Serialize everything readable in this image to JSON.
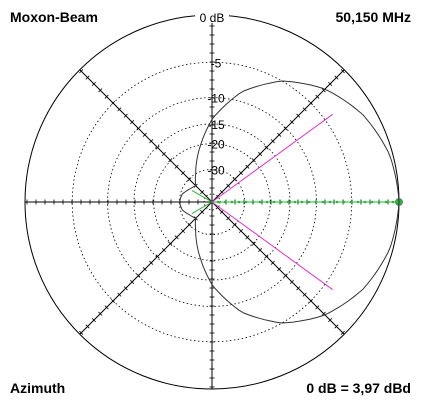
{
  "header": {
    "title": "Moxon-Beam",
    "frequency": "50,150 MHz"
  },
  "footer": {
    "view": "Azimuth",
    "reference": "0 dB = 3,97 dBd"
  },
  "chart_data": {
    "type": "polar",
    "radial_ticks": [
      {
        "db": 0,
        "label": "0 dB"
      },
      {
        "db": -5,
        "label": "-5"
      },
      {
        "db": -10,
        "label": "-10"
      },
      {
        "db": -15,
        "label": "-15"
      },
      {
        "db": -20,
        "label": "-20"
      },
      {
        "db": -30,
        "label": "-30"
      }
    ],
    "spokes_deg": [
      0,
      45,
      90,
      135,
      180,
      225,
      270,
      315
    ],
    "grid": "dotted concentric circles",
    "max_gain_direction_deg": 0,
    "half_power_lines_deg": [
      -36,
      36
    ],
    "pattern": {
      "azimuth_deg": [
        0,
        15,
        30,
        45,
        60,
        75,
        90,
        105,
        120,
        135,
        150,
        165,
        180,
        195,
        210,
        225,
        240,
        255,
        270,
        285,
        300,
        315,
        330,
        345
      ],
      "gain_db": [
        0,
        -0.3,
        -1.2,
        -2.7,
        -5,
        -8.5,
        -14,
        -22,
        -30,
        -36,
        -34,
        -31,
        -30,
        -31,
        -34,
        -36,
        -30,
        -22,
        -14,
        -8.5,
        -5,
        -2.7,
        -1.2,
        -0.3
      ]
    },
    "colors": {
      "pattern": "#333333",
      "axis_green": "#22bb33",
      "half_power": "#dd33cc",
      "grid": "#000000"
    }
  }
}
